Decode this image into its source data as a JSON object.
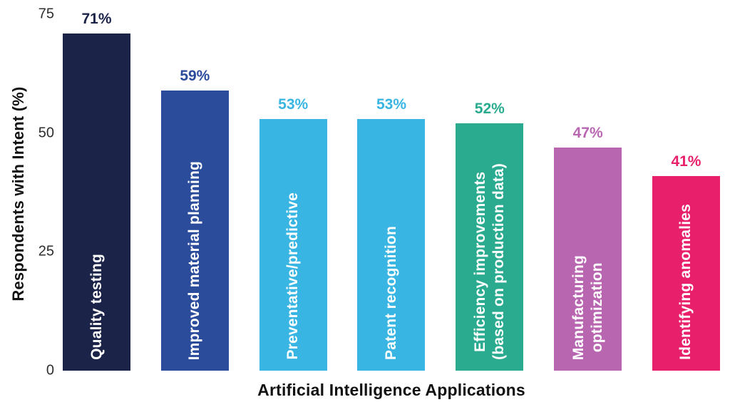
{
  "chart_data": {
    "type": "bar",
    "title": "",
    "xlabel": "Artificial Intelligence Applications",
    "ylabel": "Respondents with Intent (%)",
    "ylim": [
      0,
      75
    ],
    "yticks": [
      75,
      50,
      25,
      0
    ],
    "grid": false,
    "legend": false,
    "categories": [
      "Quality testing",
      "Improved material planning",
      "Preventative/predictive",
      "Patent recognition",
      "Efficiency improvements\n(based on production data)",
      "Manufacturing\noptimization",
      "Identifying anomalies"
    ],
    "values": [
      71,
      59,
      53,
      53,
      52,
      47,
      41
    ],
    "value_labels": [
      "71%",
      "59%",
      "53%",
      "53%",
      "52%",
      "47%",
      "41%"
    ],
    "bar_colors": [
      "#1b2348",
      "#2b4b9b",
      "#38b5e2",
      "#38b5e2",
      "#2aab8f",
      "#b966b1",
      "#e81f6b"
    ],
    "colors": {
      "background": "#ffffff",
      "axis_tick_text": "#2e2e2e",
      "axis_title_text": "#111111",
      "bar_label_text": "#ffffff"
    }
  }
}
